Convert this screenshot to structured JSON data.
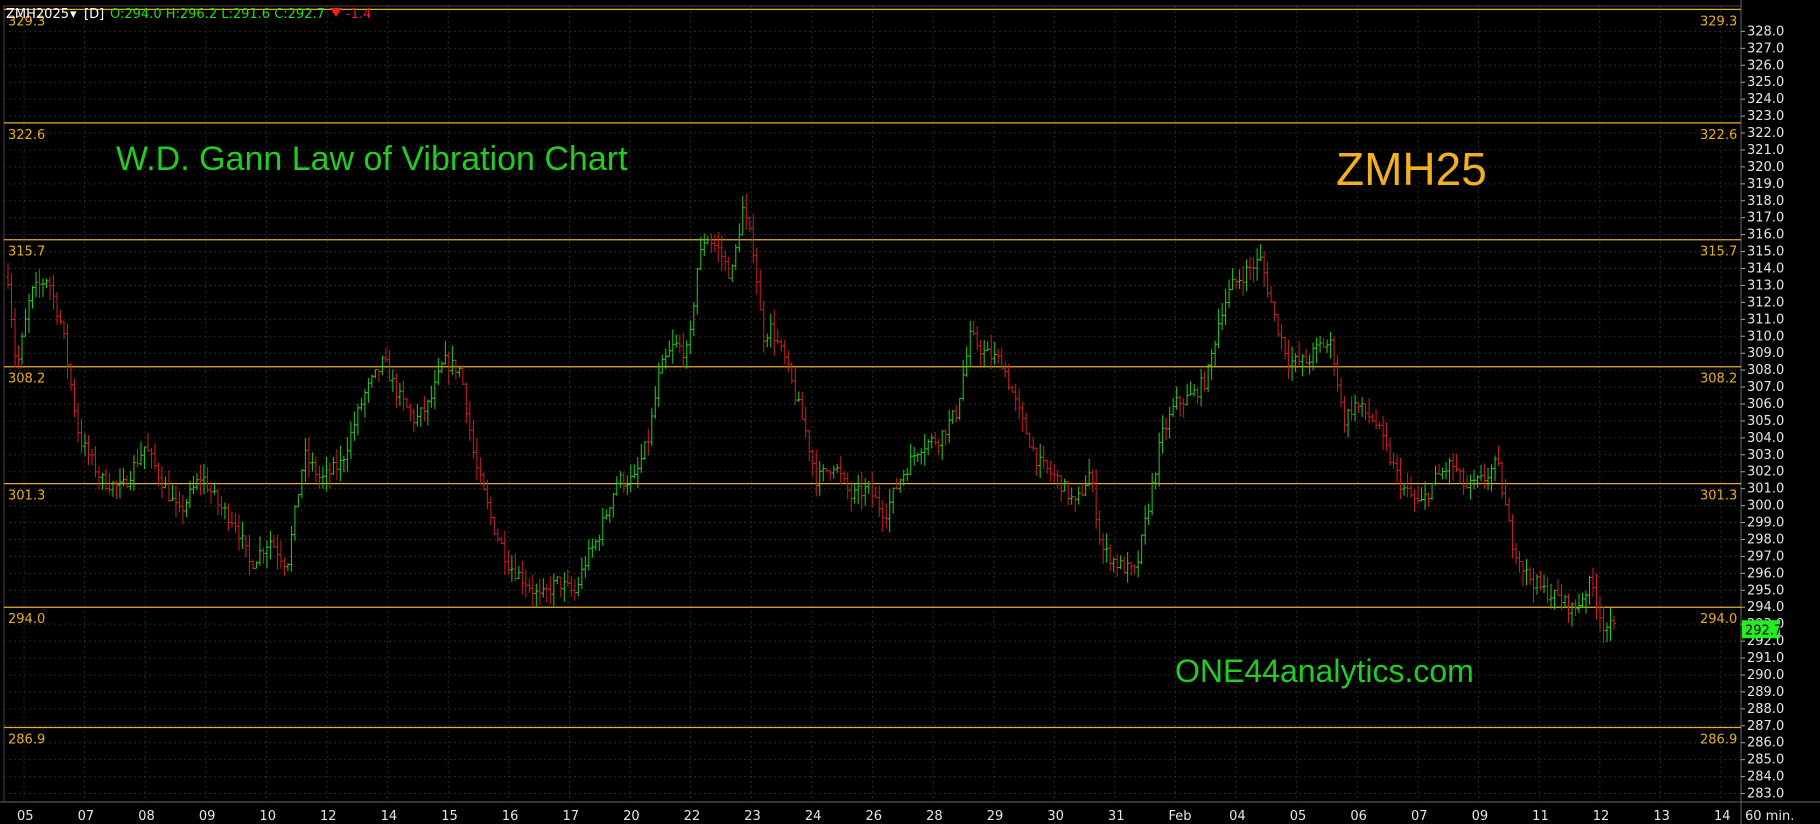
{
  "header": {
    "symbol": "ZMH2025",
    "dropdown_glyph": "▾",
    "interval": "[D]",
    "ohlc": "O:294.0 H:296.2 L:291.6 C:292.7",
    "change": "-1.4",
    "arrow_icon": "down-triangle-icon"
  },
  "overlay": {
    "title": "W.D. Gann Law of Vibration Chart",
    "symbol_text": "ZMH25",
    "watermark": "ONE44analytics.com"
  },
  "colors": {
    "background": "#000000",
    "up": "#22cc22",
    "down": "#cc2020",
    "level": "#e8b020",
    "title_green": "#22cc22",
    "symbol_orange": "#f0b020",
    "grid": "#2a2a2a",
    "price_tag_bg": "#22ee22"
  },
  "chart_data": {
    "type": "candlestick",
    "instrument": "ZMH2025",
    "interval": "60 min.",
    "ylim": [
      282.5,
      329.5
    ],
    "y_ticks": [
      "283.0",
      "284.0",
      "285.0",
      "286.0",
      "287.0",
      "288.0",
      "289.0",
      "290.0",
      "291.0",
      "292.0",
      "293.0",
      "294.0",
      "295.0",
      "296.0",
      "297.0",
      "298.0",
      "299.0",
      "300.0",
      "301.0",
      "302.0",
      "303.0",
      "304.0",
      "305.0",
      "306.0",
      "307.0",
      "308.0",
      "309.0",
      "310.0",
      "311.0",
      "312.0",
      "313.0",
      "314.0",
      "315.0",
      "316.0",
      "317.0",
      "318.0",
      "319.0",
      "320.0",
      "321.0",
      "322.0",
      "323.0",
      "324.0",
      "325.0",
      "326.0",
      "327.0",
      "328.0"
    ],
    "x_labels": [
      "05",
      "07",
      "08",
      "09",
      "10",
      "12",
      "14",
      "15",
      "16",
      "17",
      "20",
      "22",
      "23",
      "24",
      "26",
      "28",
      "29",
      "30",
      "31",
      "Feb",
      "04",
      "05",
      "06",
      "07",
      "09",
      "11",
      "12",
      "13",
      "14"
    ],
    "x_axis_unit": "60 min.",
    "last_price": "292.7",
    "levels": [
      {
        "value": 329.3,
        "label": "329.3"
      },
      {
        "value": 322.6,
        "label": "322.6"
      },
      {
        "value": 315.7,
        "label": "315.7"
      },
      {
        "value": 308.2,
        "label": "308.2"
      },
      {
        "value": 301.3,
        "label": "301.3"
      },
      {
        "value": 294.0,
        "label": "294.0"
      },
      {
        "value": 286.9,
        "label": "286.9"
      }
    ],
    "price_path": [
      [
        0,
        313.5
      ],
      [
        0.3,
        308
      ],
      [
        0.8,
        312.5
      ],
      [
        1.4,
        313.5
      ],
      [
        1.9,
        310.5
      ],
      [
        2.5,
        304
      ],
      [
        3.3,
        301.5
      ],
      [
        4.0,
        301
      ],
      [
        4.8,
        303.5
      ],
      [
        5.4,
        301.5
      ],
      [
        6.0,
        299.5
      ],
      [
        6.8,
        301.8
      ],
      [
        7.4,
        300
      ],
      [
        8.0,
        299
      ],
      [
        8.5,
        296.5
      ],
      [
        9.2,
        298
      ],
      [
        9.8,
        296.5
      ],
      [
        10.4,
        303
      ],
      [
        11.0,
        301.5
      ],
      [
        11.7,
        302.5
      ],
      [
        12.5,
        306.5
      ],
      [
        13.2,
        308.5
      ],
      [
        13.7,
        306.5
      ],
      [
        14.3,
        305
      ],
      [
        14.8,
        306
      ],
      [
        15.3,
        308.5
      ],
      [
        15.9,
        308
      ],
      [
        16.4,
        302.5
      ],
      [
        17.0,
        299
      ],
      [
        17.6,
        296.5
      ],
      [
        18.2,
        295.5
      ],
      [
        18.7,
        294.5
      ],
      [
        19.3,
        295.5
      ],
      [
        19.9,
        294.8
      ],
      [
        20.3,
        296.8
      ],
      [
        20.7,
        298
      ],
      [
        21.4,
        301.5
      ],
      [
        22.0,
        301.5
      ],
      [
        22.5,
        304
      ],
      [
        22.9,
        308
      ],
      [
        23.4,
        309.5
      ],
      [
        23.9,
        309
      ],
      [
        24.2,
        314
      ],
      [
        24.5,
        316
      ],
      [
        25.0,
        315
      ],
      [
        25.4,
        313.5
      ],
      [
        25.8,
        317.5
      ],
      [
        26.2,
        315
      ],
      [
        26.5,
        310
      ],
      [
        26.8,
        310.5
      ],
      [
        27.3,
        308.5
      ],
      [
        28.0,
        304.5
      ],
      [
        28.4,
        301.5
      ],
      [
        29.0,
        302.5
      ],
      [
        29.6,
        300.5
      ],
      [
        30.2,
        301
      ],
      [
        30.8,
        299.5
      ],
      [
        31.3,
        301.5
      ],
      [
        32.0,
        303.5
      ],
      [
        32.7,
        304
      ],
      [
        33.3,
        305.5
      ],
      [
        33.8,
        310
      ],
      [
        34.3,
        309
      ],
      [
        34.9,
        308.5
      ],
      [
        35.6,
        305
      ],
      [
        36.2,
        302.5
      ],
      [
        36.9,
        301.5
      ],
      [
        37.5,
        300
      ],
      [
        38.0,
        302
      ],
      [
        38.4,
        297.5
      ],
      [
        39.0,
        296.5
      ],
      [
        39.6,
        296
      ],
      [
        40.0,
        299.5
      ],
      [
        40.5,
        304
      ],
      [
        41.0,
        306
      ],
      [
        41.6,
        306.5
      ],
      [
        42.1,
        307.5
      ],
      [
        42.6,
        311.5
      ],
      [
        43.0,
        313
      ],
      [
        43.6,
        314
      ],
      [
        44.0,
        314.5
      ],
      [
        44.5,
        311
      ],
      [
        45.0,
        308.5
      ],
      [
        45.6,
        308.5
      ],
      [
        46.1,
        309.5
      ],
      [
        46.5,
        309.5
      ],
      [
        46.9,
        305
      ],
      [
        47.3,
        306
      ],
      [
        48.0,
        305
      ],
      [
        48.6,
        302.5
      ],
      [
        49.0,
        301
      ],
      [
        49.6,
        300
      ],
      [
        50.1,
        301.5
      ],
      [
        50.7,
        302.5
      ],
      [
        51.2,
        301
      ],
      [
        51.8,
        301.5
      ],
      [
        52.3,
        302.5
      ],
      [
        52.8,
        298
      ],
      [
        53.3,
        296
      ],
      [
        53.9,
        295
      ],
      [
        54.5,
        294.5
      ],
      [
        55.0,
        293.8
      ],
      [
        55.6,
        295.5
      ],
      [
        56.0,
        293
      ],
      [
        56.4,
        292.7
      ]
    ]
  }
}
